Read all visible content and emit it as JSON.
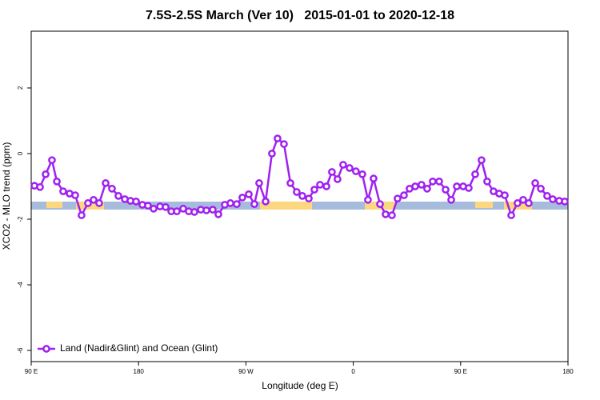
{
  "chart_data": {
    "type": "line",
    "title": "7.5S-2.5S March (Ver 10)   2015-01-01 to 2020-12-18",
    "x_label": "Longitude (deg E)",
    "y_label": "XCO2 - MLO trend (ppm)",
    "xlim": [
      90,
      540
    ],
    "xticks": [
      {
        "value": 90,
        "label": "90 E"
      },
      180,
      {
        "value": 270,
        "label": "90 W"
      },
      {
        "value": 360,
        "label": "0"
      },
      {
        "value": 450,
        "label": "90 E"
      },
      {
        "value": 540,
        "label": "180"
      }
    ],
    "ylim": [
      -6.34,
      3.73
    ],
    "yticks": [
      2,
      0,
      -2,
      -4,
      -6
    ],
    "legend": "bottomleft",
    "x": [
      92.7,
      97.4,
      102.1,
      107.4,
      111.5,
      116.8,
      122.2,
      126.9,
      132.2,
      137.6,
      142.3,
      147.0,
      152.4,
      157.7,
      163.1,
      168.5,
      173.2,
      177.9,
      183.2,
      187.9,
      192.6,
      198.0,
      202.7,
      207.4,
      212.1,
      217.4,
      222.1,
      226.8,
      232.2,
      236.9,
      242.2,
      246.9,
      252.3,
      257.0,
      262.3,
      267.0,
      272.4,
      277.1,
      281.1,
      286.5,
      291.8,
      296.5,
      301.9,
      307.3,
      312.6,
      317.3,
      322.7,
      327.4,
      332.1,
      337.5,
      342.1,
      346.8,
      351.5,
      356.9,
      362.2,
      367.6,
      372.3,
      377.0,
      382.4,
      387.1,
      392.4,
      397.1,
      402.5,
      407.2,
      411.9,
      417.2,
      421.9,
      426.6,
      432.0,
      437.4,
      442.1,
      446.8,
      452.1,
      456.8,
      462.2,
      467.5,
      472.2,
      477.6,
      482.3,
      487.0,
      492.4,
      497.7,
      502.4,
      507.1,
      512.5,
      517.2,
      522.5,
      527.2,
      532.6,
      537.3
    ],
    "series": [
      {
        "name": "Land (Nadir&Glint) and Ocean (Glint)",
        "color": "#a020f0",
        "values": [
          -0.98,
          -1.02,
          -0.63,
          -0.2,
          -0.85,
          -1.15,
          -1.22,
          -1.27,
          -1.88,
          -1.51,
          -1.41,
          -1.51,
          -0.9,
          -1.07,
          -1.29,
          -1.39,
          -1.44,
          -1.46,
          -1.56,
          -1.59,
          -1.68,
          -1.61,
          -1.63,
          -1.76,
          -1.76,
          -1.68,
          -1.76,
          -1.78,
          -1.71,
          -1.73,
          -1.71,
          -1.85,
          -1.56,
          -1.51,
          -1.54,
          -1.34,
          -1.24,
          -1.54,
          -0.9,
          -1.46,
          0,
          0.46,
          0.29,
          -0.9,
          -1.17,
          -1.29,
          -1.37,
          -1.1,
          -0.95,
          -1.0,
          -0.56,
          -0.78,
          -0.34,
          -0.44,
          -0.54,
          -0.63,
          -1.41,
          -0.76,
          -1.54,
          -1.85,
          -1.88,
          -1.37,
          -1.27,
          -1.07,
          -1.0,
          -0.95,
          -1.07,
          -0.85,
          -0.85,
          -1.1,
          -1.41,
          -1.0,
          -1.0,
          -1.05,
          -0.63,
          -0.2,
          -0.85,
          -1.15,
          -1.22,
          -1.27,
          -1.88,
          -1.51,
          -1.41,
          -1.51,
          -0.9,
          -1.07,
          -1.29,
          -1.39,
          -1.44,
          -1.46
        ]
      }
    ]
  }
}
